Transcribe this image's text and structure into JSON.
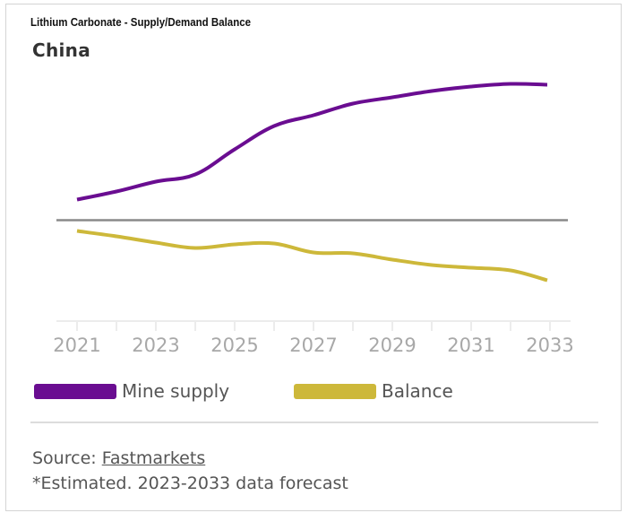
{
  "header": {
    "title": "Lithium Carbonate  - Supply/Demand Balance",
    "region": "China"
  },
  "footer": {
    "source_label": "Source:",
    "source_link": "Fastmarkets",
    "note": "*Estimated. 2023-2033 data forecast"
  },
  "chart_data": {
    "type": "line",
    "title": "Lithium Carbonate  - Supply/Demand Balance",
    "subtitle": "China",
    "xlabel": "",
    "ylabel": "",
    "x": [
      2021,
      2022,
      2023,
      2024,
      2025,
      2026,
      2027,
      2028,
      2029,
      2030,
      2031,
      2032,
      2033
    ],
    "x_tick_labels": [
      "2021",
      "2023",
      "2025",
      "2027",
      "2029",
      "2031",
      "2033"
    ],
    "y_units": "relative (no scale shown)",
    "ylim": [
      -80,
      160
    ],
    "zero_line": true,
    "grid": false,
    "legend_position": "bottom",
    "series": [
      {
        "name": "Mine supply",
        "color": "#6a0d91",
        "values": [
          23,
          32,
          43,
          51,
          79,
          105,
          117,
          130,
          137,
          144,
          149,
          152,
          151
        ]
      },
      {
        "name": "Balance",
        "color": "#cdb83a",
        "values": [
          -12,
          -18,
          -25,
          -31,
          -27,
          -26,
          -36,
          -37,
          -44,
          -50,
          -53,
          -56,
          -67
        ]
      }
    ]
  }
}
